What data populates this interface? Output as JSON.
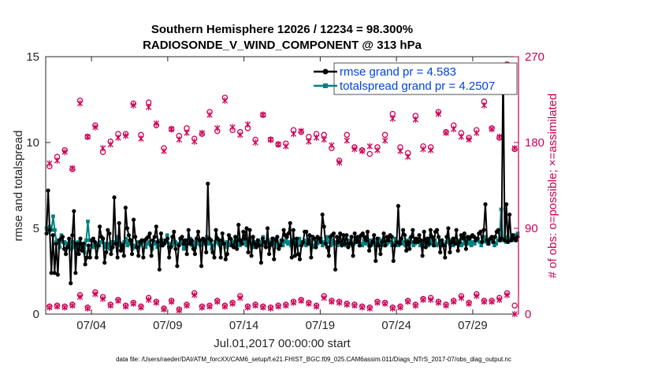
{
  "chart_data": {
    "type": "line",
    "title_line1": "Southern Hemisphere 12026 / 12234 = 98.300%",
    "title_line2": "RADIOSONDE_V_WIND_COMPONENT @ 313 hPa",
    "xlabel": "Jul.01,2017 00:00:00 start",
    "ylabel_left": "rmse and totalspread",
    "ylabel_right": "# of obs: o=possible; ×=assimilated",
    "footer": "data file: /Users/raeder/DAI/ATM_forcXX/CAM6_setup/f.e21.FHIST_BGC.f09_025.CAM6assim.011/Diags_NTrS_2017-07/obs_diag_output.nc",
    "xlim": [
      1.0,
      32.0
    ],
    "ylim_left": [
      0,
      15
    ],
    "ylim_right": [
      0,
      270
    ],
    "x_ticks": [
      4,
      9,
      14,
      19,
      24,
      29
    ],
    "x_tick_labels": [
      "07/04",
      "07/09",
      "07/14",
      "07/19",
      "07/24",
      "07/29"
    ],
    "y_left_ticks": [
      0,
      5,
      10,
      15
    ],
    "y_left_tick_labels": [
      "0",
      "5",
      "10",
      "15"
    ],
    "y_right_ticks": [
      0,
      90,
      180,
      270
    ],
    "y_right_tick_labels": [
      "0",
      "90",
      "180",
      "270"
    ],
    "colors": {
      "rmse": "#000000",
      "spread": "#008080",
      "obs": "#cc0055",
      "legend_text": "#0044dd"
    },
    "legend": [
      {
        "label": "rmse grand pr = 4.583",
        "series": "rmse"
      },
      {
        "label": "totalspread grand pr = 4.2507",
        "series": "spread"
      }
    ],
    "series": [
      {
        "name": "rmse",
        "axis": "left",
        "values": [
          4.7,
          7.2,
          4.9,
          2.4,
          4.6,
          2.4,
          4.1,
          2.3,
          4.3,
          4.4,
          4.5,
          3.8,
          3.5,
          3.9,
          4.4,
          1.8,
          4.6,
          6.0,
          2.4,
          4.1,
          3.5,
          4.4,
          3.7,
          4.1,
          2.9,
          3.3,
          4.0,
          3.3,
          4.3,
          4.4,
          4.2,
          3.3,
          4.0,
          5.1,
          4.5,
          4.4,
          3.0,
          3.6,
          4.9,
          4.7,
          3.5,
          3.9,
          6.8,
          4.1,
          3.3,
          5.3,
          3.7,
          4.0,
          3.4,
          6.2,
          5.0,
          4.6,
          4.3,
          3.5,
          5.5,
          4.5,
          3.9,
          3.4,
          4.2,
          4.3,
          3.3,
          4.3,
          4.4,
          4.5,
          4.7,
          3.4,
          4.3,
          4.5,
          5.1,
          4.2,
          2.6,
          4.7,
          4.0,
          4.1,
          4.3,
          4.4,
          3.3,
          3.9,
          4.5,
          4.8,
          3.8,
          2.8,
          4.0,
          4.4,
          4.5,
          4.1,
          4.3,
          3.5,
          4.9,
          4.1,
          4.3,
          3.8,
          3.5,
          4.4,
          4.8,
          4.3,
          2.8,
          4.4,
          4.3,
          3.6,
          7.6,
          4.4,
          4.3,
          3.6,
          3.3,
          4.9,
          4.4,
          4.3,
          3.3,
          4.7,
          4.1,
          3.2,
          3.5,
          4.6,
          4.4,
          4.0,
          3.9,
          4.5,
          3.8,
          5.2,
          4.3,
          4.1,
          4.8,
          4.4,
          5.0,
          3.6,
          4.9,
          3.4,
          4.5,
          4.1,
          3.9,
          4.3,
          4.0,
          3.0,
          4.4,
          4.2,
          3.9,
          5.0,
          3.5,
          4.1,
          4.4,
          3.2,
          4.3,
          4.5,
          3.8,
          4.0,
          4.3,
          4.9,
          4.6,
          4.5,
          4.7,
          5.3,
          3.3,
          4.9,
          3.4,
          4.4,
          3.5,
          3.2,
          4.0,
          4.2,
          4.8,
          4.8,
          4.1,
          4.6,
          3.3,
          4.5,
          4.4,
          3.9,
          4.5,
          4.4,
          4.2,
          5.8,
          5.1,
          4.1,
          3.9,
          3.4,
          4.5,
          4.6,
          4.7,
          2.6,
          4.5,
          4.2,
          4.7,
          4.0,
          4.6,
          4.1,
          4.6,
          3.9,
          4.1,
          4.5,
          3.4,
          4.7,
          4.2,
          4.5,
          4.0,
          4.6,
          4.7,
          4.5,
          4.3,
          4.8,
          3.7,
          4.0,
          4.2,
          4.6,
          3.1,
          4.4,
          4.0,
          3.5,
          4.2,
          4.7,
          4.0,
          4.5,
          4.3,
          4.6,
          4.5,
          3.1,
          4.0,
          4.2,
          6.3,
          4.1,
          4.4,
          4.9,
          4.6,
          3.7,
          4.2,
          3.8,
          4.5,
          4.9,
          4.2,
          4.4,
          4.2,
          4.6,
          4.3,
          3.4,
          4.8,
          3.9,
          4.4,
          4.1,
          4.9,
          4.5,
          4.0,
          4.8,
          4.9,
          4.5,
          3.6,
          4.3,
          4.0,
          3.3,
          4.5,
          5.0,
          3.6,
          4.2,
          4.4,
          4.1,
          4.9,
          3.7,
          4.2,
          4.6,
          4.4,
          4.7,
          3.8,
          4.5,
          4.4,
          4.5,
          4.6,
          4.5,
          4.3,
          4.4,
          4.7,
          4.8,
          4.2,
          4.9,
          6.4,
          4.3,
          4.1,
          4.4,
          4.5,
          4.2,
          4.5,
          4.8,
          4.9,
          4.3,
          4.4,
          14.5,
          4.3,
          6.4,
          4.2,
          5.8,
          4.3,
          4.6,
          4.4,
          4.3,
          4.5
        ]
      },
      {
        "name": "totalspread",
        "axis": "left",
        "values": [
          5.0,
          4.8,
          5.1,
          4.9,
          5.7,
          4.9,
          4.2,
          4.3,
          3.9,
          4.6,
          4.2,
          4.2,
          4.1,
          4.1,
          4.2,
          3.8,
          4.2,
          3.9,
          4.1,
          4.2,
          4.0,
          3.8,
          4.1,
          3.6,
          4.3,
          5.4,
          4.3,
          4.3,
          3.9,
          4.0,
          4.1,
          3.9,
          4.0,
          4.2,
          4.4,
          4.1,
          3.9,
          4.1,
          3.8,
          4.0,
          4.2,
          4.1,
          4.2,
          4.5,
          4.0,
          4.1,
          3.9,
          4.2,
          4.4,
          4.0,
          4.3,
          4.1,
          3.8,
          4.0,
          3.9,
          4.2,
          4.0,
          4.1,
          4.3,
          4.2,
          3.9,
          4.1,
          4.2,
          4.0,
          3.8,
          4.1,
          4.2,
          3.9,
          4.3,
          4.0,
          4.1,
          4.3,
          4.2,
          4.6,
          3.9,
          4.1,
          4.0,
          4.3,
          4.2,
          4.1,
          4.0,
          4.4,
          4.1,
          3.8,
          4.1,
          4.3,
          4.1,
          4.4,
          4.0,
          4.2,
          3.9,
          4.1,
          4.3,
          4.0,
          4.2,
          4.1,
          4.3,
          4.5,
          4.1,
          4.2,
          3.8,
          4.0,
          4.2,
          4.4,
          4.1,
          4.0,
          4.3,
          4.1,
          3.9,
          4.2,
          4.1,
          4.0,
          4.3,
          4.2,
          3.9,
          4.1,
          4.4,
          4.0,
          4.2,
          4.1,
          4.3,
          4.0,
          4.2,
          4.4,
          4.1,
          3.9,
          4.2,
          4.0,
          4.3,
          4.1,
          4.2,
          4.5,
          4.0,
          4.1,
          4.3,
          4.2,
          4.0,
          4.1,
          4.4,
          4.2,
          3.9,
          4.1,
          4.3,
          4.0,
          4.2,
          4.4,
          4.1,
          4.2,
          4.0,
          4.3,
          4.1,
          4.2,
          4.0,
          4.4,
          4.2,
          4.1,
          4.3,
          4.0,
          4.2,
          4.1,
          4.3,
          4.0,
          3.9,
          4.2,
          4.1,
          4.3,
          4.4,
          4.0,
          4.2,
          4.1,
          4.5,
          4.2,
          4.0,
          4.3,
          4.1,
          4.2,
          4.0,
          4.3,
          4.1,
          4.2,
          4.4,
          4.0,
          4.1,
          4.3,
          4.2,
          4.0,
          4.1,
          4.3,
          4.2,
          4.4,
          4.1,
          4.0,
          4.3,
          4.1,
          4.2,
          4.0,
          4.3,
          4.2,
          4.1,
          4.0,
          4.2,
          4.4,
          4.1,
          4.3,
          4.0,
          4.2,
          4.1,
          4.3,
          4.2,
          4.0,
          4.1,
          4.4,
          4.2,
          4.0,
          4.3,
          4.1,
          4.2,
          4.0,
          4.3,
          4.1,
          4.4,
          4.2,
          4.0,
          4.1,
          4.3,
          4.2,
          4.0,
          4.2,
          4.1,
          4.3,
          4.2,
          4.0,
          4.4,
          4.1,
          4.2,
          4.3,
          4.0,
          4.1,
          4.2,
          4.3,
          4.1,
          4.0,
          4.2,
          4.4,
          4.1,
          4.3,
          4.0,
          4.2,
          4.1,
          4.3,
          4.2,
          4.0,
          4.1,
          4.4,
          4.2,
          4.1,
          4.3,
          4.0,
          4.2,
          4.1,
          4.3,
          4.4,
          4.2,
          4.0,
          4.3,
          4.5,
          4.2,
          4.1,
          4.3,
          4.4,
          4.2,
          4.0,
          4.1,
          4.3,
          4.4,
          6.1,
          4.3,
          4.4,
          4.2,
          4.5,
          4.3,
          4.4,
          4.3,
          4.6,
          4.6,
          4.7
        ]
      },
      {
        "name": "obs_possible",
        "axis": "right",
        "marker": "o",
        "x": [
          1.25,
          1.75,
          2.25,
          2.75,
          3.25,
          3.75,
          4.25,
          4.75,
          5.25,
          5.75,
          6.25,
          6.75,
          7.25,
          7.75,
          8.25,
          8.75,
          9.25,
          9.75,
          10.25,
          10.75,
          11.25,
          11.75,
          12.25,
          12.75,
          13.25,
          13.75,
          14.25,
          14.75,
          15.25,
          15.75,
          16.25,
          16.75,
          17.25,
          17.75,
          18.25,
          18.75,
          19.25,
          19.75,
          20.25,
          20.75,
          21.25,
          21.75,
          22.25,
          22.75,
          23.25,
          23.75,
          24.25,
          24.75,
          25.25,
          25.75,
          26.25,
          26.75,
          27.25,
          27.75,
          28.25,
          28.75,
          29.25,
          29.75,
          30.25,
          30.75,
          31.25,
          31.75
        ],
        "values": [
          155,
          165,
          172,
          152,
          224,
          186,
          198,
          170,
          181,
          189,
          189,
          221,
          188,
          222,
          198,
          174,
          194,
          187,
          195,
          184,
          189,
          212,
          192,
          227,
          193,
          191,
          195,
          183,
          209,
          183,
          178,
          179,
          193,
          191,
          186,
          189,
          188,
          174,
          161,
          188,
          175,
          172,
          168,
          175,
          188,
          210,
          175,
          169,
          208,
          176,
          175,
          212,
          191,
          198,
          190,
          185,
          193,
          223,
          195,
          185,
          262,
          173
        ]
      },
      {
        "name": "obs_assimilated",
        "axis": "right",
        "marker": "x",
        "x": [
          1.25,
          1.75,
          2.25,
          2.75,
          3.25,
          3.75,
          4.25,
          4.75,
          5.25,
          5.75,
          6.25,
          6.75,
          7.25,
          7.75,
          8.25,
          8.75,
          9.25,
          9.75,
          10.25,
          10.75,
          11.25,
          11.75,
          12.25,
          12.75,
          13.25,
          13.75,
          14.25,
          14.75,
          15.25,
          15.75,
          16.25,
          16.75,
          17.25,
          17.75,
          18.25,
          18.75,
          19.25,
          19.75,
          20.25,
          20.75,
          21.25,
          21.75,
          22.25,
          22.75,
          23.25,
          23.75,
          24.25,
          24.75,
          25.25,
          25.75,
          26.25,
          26.75,
          27.25,
          27.75,
          28.25,
          28.75,
          29.25,
          29.75,
          30.25,
          30.75,
          31.25,
          31.75
        ],
        "values": [
          158,
          161,
          170,
          153,
          221,
          186,
          196,
          174,
          178,
          185,
          187,
          219,
          184,
          217,
          200,
          171,
          194,
          183,
          190,
          181,
          190,
          209,
          195,
          224,
          196,
          188,
          199,
          180,
          209,
          183,
          178,
          176,
          189,
          192,
          181,
          185,
          183,
          177,
          159,
          182,
          173,
          171,
          176,
          172,
          182,
          205,
          171,
          165,
          204,
          173,
          172,
          210,
          190,
          194,
          186,
          183,
          190,
          219,
          194,
          186,
          258,
          174
        ]
      },
      {
        "name": "obs_possible_low",
        "axis": "right",
        "marker": "o",
        "x": [
          1.25,
          1.75,
          2.25,
          2.75,
          3.25,
          3.75,
          4.25,
          4.75,
          5.25,
          5.75,
          6.25,
          6.75,
          7.25,
          7.75,
          8.25,
          8.75,
          9.25,
          9.75,
          10.25,
          10.75,
          11.25,
          11.75,
          12.25,
          12.75,
          13.25,
          13.75,
          14.25,
          14.75,
          15.25,
          15.75,
          16.25,
          16.75,
          17.25,
          17.75,
          18.25,
          18.75,
          19.25,
          19.75,
          20.25,
          20.75,
          21.25,
          21.75,
          22.25,
          22.75,
          23.25,
          23.75,
          24.25,
          24.75,
          25.25,
          25.75,
          26.25,
          26.75,
          27.25,
          27.75,
          28.25,
          28.75,
          29.25,
          29.75,
          30.25,
          30.75,
          31.25,
          31.75
        ],
        "values": [
          8,
          9,
          8,
          10,
          20,
          7,
          23,
          18,
          10,
          15,
          9,
          12,
          8,
          17,
          13,
          6,
          14,
          5,
          10,
          22,
          8,
          9,
          14,
          9,
          12,
          19,
          8,
          10,
          8,
          7,
          9,
          10,
          13,
          15,
          12,
          9,
          19,
          14,
          13,
          11,
          10,
          8,
          7,
          13,
          12,
          7,
          8,
          14,
          10,
          16,
          17,
          13,
          10,
          14,
          19,
          12,
          21,
          14,
          14,
          17,
          22,
          9
        ]
      },
      {
        "name": "obs_assimilated_low",
        "axis": "right",
        "marker": "x",
        "x": [
          1.25,
          1.75,
          2.25,
          2.75,
          3.25,
          3.75,
          4.25,
          4.75,
          5.25,
          5.75,
          6.25,
          6.75,
          7.25,
          7.75,
          8.25,
          8.75,
          9.25,
          9.75,
          10.25,
          10.75,
          11.25,
          11.75,
          12.25,
          12.75,
          13.25,
          13.75,
          14.25,
          14.75,
          15.25,
          15.75,
          16.25,
          16.75,
          17.25,
          17.75,
          18.25,
          18.75,
          19.25,
          19.75,
          20.25,
          20.75,
          21.25,
          21.75,
          22.25,
          22.75,
          23.25,
          23.75,
          24.25,
          24.75,
          25.25,
          25.75,
          26.25,
          26.75,
          27.25,
          27.75,
          28.25,
          28.75,
          29.25,
          29.75,
          30.25,
          30.75,
          31.25,
          31.75
        ],
        "values": [
          7,
          8,
          7,
          9,
          18,
          6,
          21,
          16,
          9,
          14,
          8,
          11,
          7,
          15,
          12,
          5,
          13,
          4,
          9,
          20,
          7,
          8,
          13,
          8,
          11,
          17,
          7,
          9,
          7,
          6,
          8,
          9,
          12,
          14,
          11,
          8,
          17,
          13,
          12,
          10,
          9,
          7,
          6,
          12,
          11,
          6,
          7,
          13,
          9,
          15,
          15,
          12,
          9,
          13,
          17,
          11,
          19,
          13,
          13,
          15,
          20,
          0
        ]
      }
    ]
  }
}
